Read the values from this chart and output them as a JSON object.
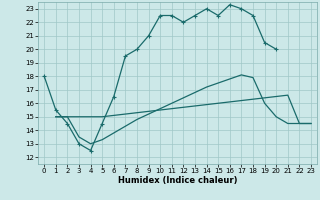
{
  "xlabel": "Humidex (Indice chaleur)",
  "xlim": [
    -0.5,
    23.5
  ],
  "ylim": [
    11.5,
    23.5
  ],
  "yticks": [
    12,
    13,
    14,
    15,
    16,
    17,
    18,
    19,
    20,
    21,
    22,
    23
  ],
  "xticks": [
    0,
    1,
    2,
    3,
    4,
    5,
    6,
    7,
    8,
    9,
    10,
    11,
    12,
    13,
    14,
    15,
    16,
    17,
    18,
    19,
    20,
    21,
    22,
    23
  ],
  "bg_color": "#cce8e8",
  "grid_color": "#a0c8c8",
  "line_color": "#1a6b6b",
  "line1_x": [
    0,
    1,
    2,
    3,
    4,
    5,
    6,
    7,
    8,
    9,
    10,
    11,
    12,
    13,
    14,
    15,
    16,
    17,
    18,
    19,
    20
  ],
  "line1_y": [
    18,
    15.5,
    14.5,
    13,
    12.5,
    14.5,
    16.5,
    19.5,
    20,
    21,
    22.5,
    22.5,
    22,
    22.5,
    23,
    22.5,
    23.3,
    23,
    22.5,
    20.5,
    20.0
  ],
  "line2_x": [
    1,
    2,
    3,
    4,
    5,
    6,
    7,
    8,
    9,
    10,
    11,
    12,
    13,
    14,
    15,
    16,
    17,
    18,
    19,
    20,
    21,
    22,
    23
  ],
  "line2_y": [
    15.0,
    15.0,
    15.0,
    15.0,
    15.0,
    15.1,
    15.2,
    15.3,
    15.4,
    15.5,
    15.6,
    15.7,
    15.8,
    15.9,
    16.0,
    16.1,
    16.2,
    16.3,
    16.4,
    16.5,
    16.6,
    14.5,
    14.5
  ],
  "line3_x": [
    1,
    2,
    3,
    4,
    5,
    6,
    7,
    8,
    9,
    10,
    11,
    12,
    13,
    14,
    15,
    16,
    17,
    18,
    19,
    20,
    21,
    22,
    23
  ],
  "line3_y": [
    15.0,
    15.0,
    13.5,
    13.0,
    13.3,
    13.8,
    14.3,
    14.8,
    15.2,
    15.6,
    16.0,
    16.4,
    16.8,
    17.2,
    17.5,
    17.8,
    18.1,
    17.9,
    16.0,
    15.0,
    14.5,
    14.5,
    14.5
  ]
}
